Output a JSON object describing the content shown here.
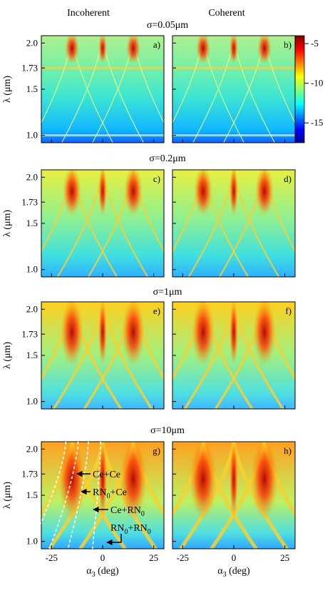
{
  "figure": {
    "column_headers": [
      "Incoherent",
      "Coherent"
    ],
    "ylabel": "λ (μm)",
    "xlabel_base": "α",
    "xlabel_sub": "3",
    "xlabel_tail": " (deg)"
  },
  "chart_data": {
    "type": "heatmap",
    "x_ticks": [
      -25,
      0,
      25
    ],
    "x_tick_labels": [
      "-25",
      "0",
      "25"
    ],
    "xlim": [
      -30,
      30
    ],
    "y_ticks": [
      1.0,
      1.5,
      1.73,
      2.0
    ],
    "y_tick_labels": [
      "1.0",
      "1.5",
      "1.73",
      "2.0"
    ],
    "ylim": [
      0.92,
      2.08
    ],
    "colorbar": {
      "ticks": [
        -5,
        -10,
        -15
      ],
      "tick_labels": [
        "-5",
        "-10",
        "-15"
      ],
      "range": [
        -17.5,
        -4
      ]
    },
    "rows": [
      {
        "sigma_label": "σ=0.05μm",
        "panels": [
          "a)",
          "b)"
        ]
      },
      {
        "sigma_label": "σ=0.2μm",
        "panels": [
          "c)",
          "d)"
        ]
      },
      {
        "sigma_label": "σ=1μm",
        "panels": [
          "e)",
          "f)"
        ]
      },
      {
        "sigma_label": "σ=10μm",
        "panels": [
          "g)",
          "h)"
        ]
      }
    ],
    "annotations": [
      {
        "base": "Ce+Ce",
        "sub": "",
        "tail": ""
      },
      {
        "base": "RN",
        "sub": "0",
        "tail": "+Ce"
      },
      {
        "base": "Ce+RN",
        "sub": "0",
        "tail": ""
      },
      {
        "base": "RN",
        "sub": "0",
        "tail": "+RN",
        "sub2": "0"
      }
    ]
  }
}
